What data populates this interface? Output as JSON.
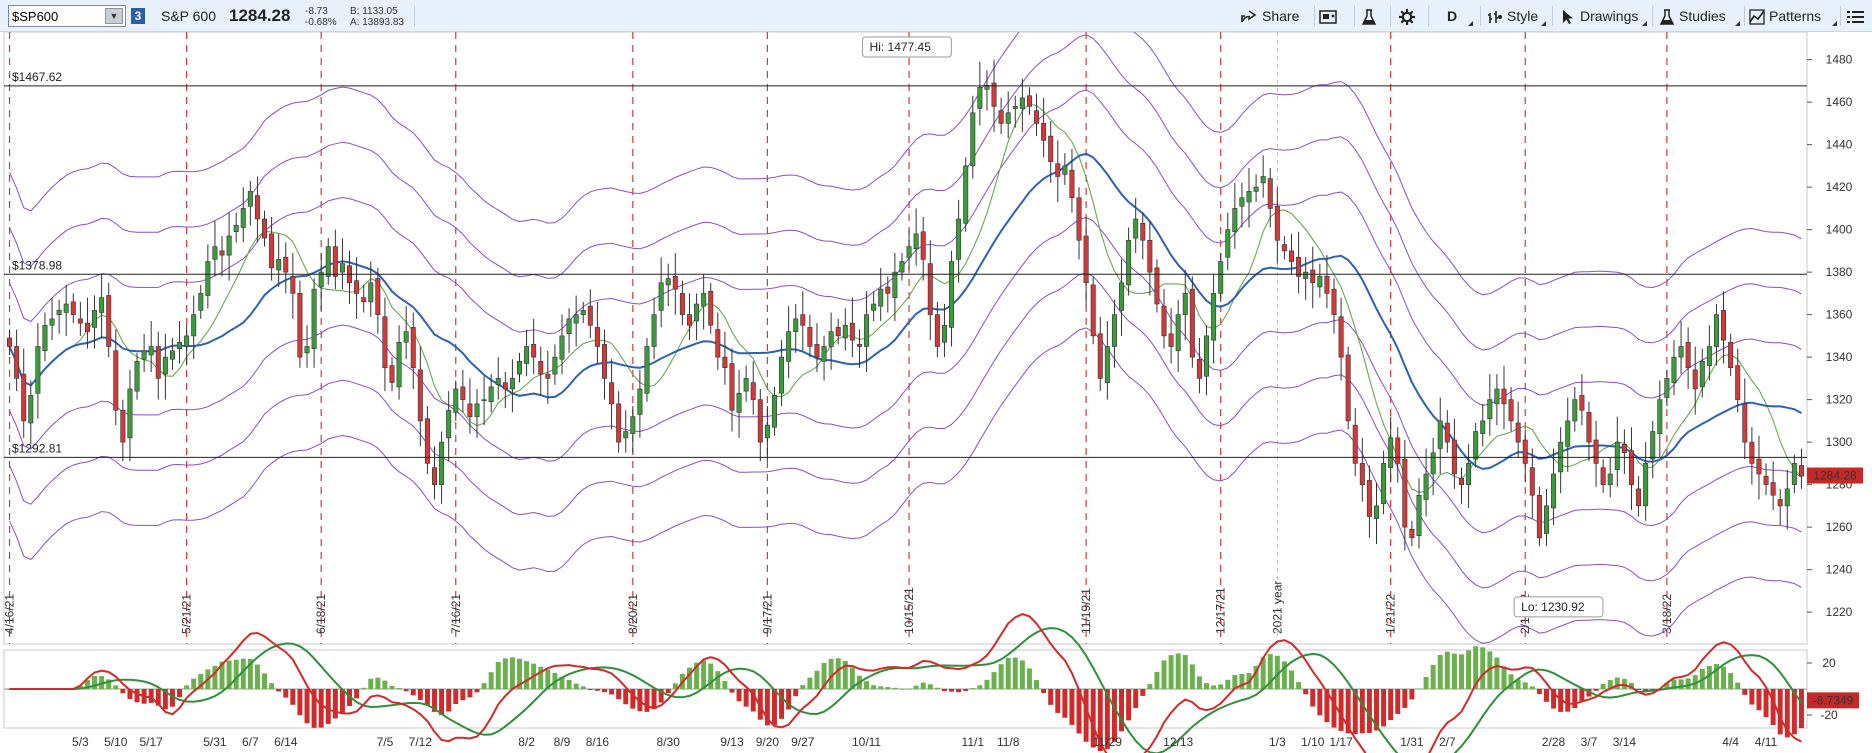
{
  "toolbar": {
    "symbol_value": "$SP600",
    "symbol_badge": "3",
    "symbol_name": "S&P 600",
    "last_price": "1284.28",
    "change": "-8.73",
    "change_pct": "-0.68%",
    "bid": "B: 1133.05",
    "ask": "A: 13893.83",
    "share_label": "Share",
    "period_label": "D",
    "style_label": "Style",
    "drawings_label": "Drawings",
    "studies_label": "Studies",
    "patterns_label": "Patterns",
    "icons": [
      "share-icon",
      "screenshot-icon",
      "flask-icon",
      "gear-icon",
      "style-icon",
      "cursor-icon",
      "studies-flask-icon",
      "patterns-icon",
      "menu-icon"
    ]
  },
  "chart_data": [
    {
      "type": "candlestick",
      "title": "",
      "ylim": [
        1205,
        1493
      ],
      "yticks": [
        1220,
        1240,
        1260,
        1280,
        1300,
        1320,
        1340,
        1360,
        1380,
        1400,
        1420,
        1440,
        1460,
        1480
      ],
      "last_price_label": "1284.28",
      "price_lines": [
        {
          "label": "$1467.62",
          "value": 1467.62
        },
        {
          "label": "$1378.98",
          "value": 1378.98
        },
        {
          "label": "$1292.81",
          "value": 1292.81
        }
      ],
      "hi_label": "Hi: 1477.45",
      "hi_value": 1477.45,
      "hi_index": 121,
      "lo_label": "Lo: 1230.92",
      "lo_value": 1230.92,
      "lo_index": 213,
      "x_labels": [
        {
          "label": "5/3",
          "index": 10
        },
        {
          "label": "5/10",
          "index": 15
        },
        {
          "label": "5/17",
          "index": 20
        },
        {
          "label": "5/31",
          "index": 29
        },
        {
          "label": "6/7",
          "index": 34
        },
        {
          "label": "6/14",
          "index": 39
        },
        {
          "label": "7/5",
          "index": 53
        },
        {
          "label": "7/12",
          "index": 58
        },
        {
          "label": "8/2",
          "index": 73
        },
        {
          "label": "8/9",
          "index": 78
        },
        {
          "label": "8/16",
          "index": 83
        },
        {
          "label": "8/30",
          "index": 93
        },
        {
          "label": "9/13",
          "index": 102
        },
        {
          "label": "9/20",
          "index": 107
        },
        {
          "label": "9/27",
          "index": 112
        },
        {
          "label": "10/11",
          "index": 121
        },
        {
          "label": "11/1",
          "index": 136
        },
        {
          "label": "11/8",
          "index": 141
        },
        {
          "label": "11/29",
          "index": 155
        },
        {
          "label": "12/13",
          "index": 165
        },
        {
          "label": "1/3",
          "index": 179
        },
        {
          "label": "1/10",
          "index": 184
        },
        {
          "label": "1/17",
          "index": 188
        },
        {
          "label": "1/31",
          "index": 198
        },
        {
          "label": "2/7",
          "index": 203
        },
        {
          "label": "2/28",
          "index": 218
        },
        {
          "label": "3/7",
          "index": 223
        },
        {
          "label": "3/14",
          "index": 228
        },
        {
          "label": "4/4",
          "index": 243
        },
        {
          "label": "4/11",
          "index": 248
        }
      ],
      "monthly_expirations": [
        {
          "label": "4/16/21",
          "index": 0
        },
        {
          "label": "5/21/21",
          "index": 25
        },
        {
          "label": "6/18/21",
          "index": 44
        },
        {
          "label": "7/16/21",
          "index": 63
        },
        {
          "label": "8/20/21",
          "index": 88
        },
        {
          "label": "9/17/21",
          "index": 107
        },
        {
          "label": "10/15/21",
          "index": 127
        },
        {
          "label": "11/19/21",
          "index": 152
        },
        {
          "label": "12/17/21",
          "index": 171
        },
        {
          "label": "1/21/22",
          "index": 195
        },
        {
          "label": "2/18/22",
          "index": 214
        },
        {
          "label": "3/18/22",
          "index": 234
        }
      ],
      "year_marker": {
        "label": "2021 year",
        "index": 179
      },
      "closes": [
        1345,
        1330,
        1310,
        1322,
        1345,
        1355,
        1358,
        1362,
        1365,
        1360,
        1356,
        1352,
        1362,
        1368,
        1345,
        1315,
        1300,
        1325,
        1338,
        1343,
        1345,
        1330,
        1340,
        1343,
        1347,
        1350,
        1360,
        1370,
        1385,
        1392,
        1388,
        1397,
        1402,
        1410,
        1418,
        1405,
        1396,
        1382,
        1386,
        1380,
        1370,
        1340,
        1345,
        1372,
        1380,
        1392,
        1378,
        1384,
        1375,
        1370,
        1366,
        1375,
        1360,
        1335,
        1328,
        1347,
        1352,
        1335,
        1310,
        1290,
        1280,
        1300,
        1315,
        1325,
        1320,
        1312,
        1318,
        1320,
        1326,
        1330,
        1325,
        1330,
        1338,
        1345,
        1340,
        1332,
        1330,
        1340,
        1350,
        1358,
        1360,
        1362,
        1355,
        1345,
        1330,
        1318,
        1300,
        1305,
        1312,
        1325,
        1345,
        1360,
        1375,
        1377,
        1372,
        1360,
        1355,
        1365,
        1370,
        1355,
        1340,
        1335,
        1315,
        1323,
        1330,
        1320,
        1300,
        1308,
        1322,
        1340,
        1352,
        1358,
        1355,
        1345,
        1340,
        1345,
        1352,
        1350,
        1355,
        1348,
        1345,
        1360,
        1365,
        1372,
        1370,
        1380,
        1385,
        1392,
        1398,
        1386,
        1360,
        1345,
        1355,
        1385,
        1405,
        1430,
        1455,
        1467,
        1468,
        1458,
        1450,
        1455,
        1458,
        1462,
        1458,
        1450,
        1442,
        1432,
        1425,
        1430,
        1415,
        1395,
        1375,
        1350,
        1330,
        1345,
        1360,
        1375,
        1395,
        1405,
        1395,
        1380,
        1365,
        1350,
        1345,
        1360,
        1370,
        1340,
        1330,
        1350,
        1370,
        1385,
        1400,
        1410,
        1415,
        1418,
        1420,
        1425,
        1410,
        1395,
        1390,
        1385,
        1378,
        1380,
        1375,
        1378,
        1370,
        1360,
        1340,
        1310,
        1290,
        1280,
        1265,
        1270,
        1290,
        1302,
        1290,
        1260,
        1255,
        1275,
        1285,
        1295,
        1310,
        1300,
        1285,
        1280,
        1290,
        1305,
        1310,
        1320,
        1325,
        1318,
        1310,
        1300,
        1290,
        1275,
        1255,
        1270,
        1285,
        1300,
        1310,
        1320,
        1315,
        1300,
        1290,
        1280,
        1285,
        1300,
        1295,
        1280,
        1270,
        1290,
        1305,
        1320,
        1330,
        1340,
        1345,
        1335,
        1325,
        1338,
        1345,
        1360,
        1348,
        1335,
        1320,
        1300,
        1290,
        1285,
        1280,
        1275,
        1270,
        1278,
        1290,
        1284
      ],
      "series": [
        {
          "name": "",
          "kind": "bollinger_bands",
          "color": "#8a4fc7"
        },
        {
          "name": "",
          "kind": "moving_average_long",
          "color": "#2d62b3"
        },
        {
          "name": "",
          "kind": "moving_average_short",
          "color": "#6aa84f"
        }
      ]
    },
    {
      "type": "macd_histogram",
      "ylim": [
        -30,
        30
      ],
      "yticks": [
        20,
        -20
      ],
      "last_value_label": "-8.7349",
      "series": [
        {
          "name": "",
          "kind": "macd_line",
          "color": "#d12a2a"
        },
        {
          "name": "",
          "kind": "signal_line",
          "color": "#2f8f3a"
        },
        {
          "name": "",
          "kind": "histogram",
          "pos_color": "#6ab04c",
          "neg_color": "#d12a2a"
        }
      ]
    }
  ]
}
